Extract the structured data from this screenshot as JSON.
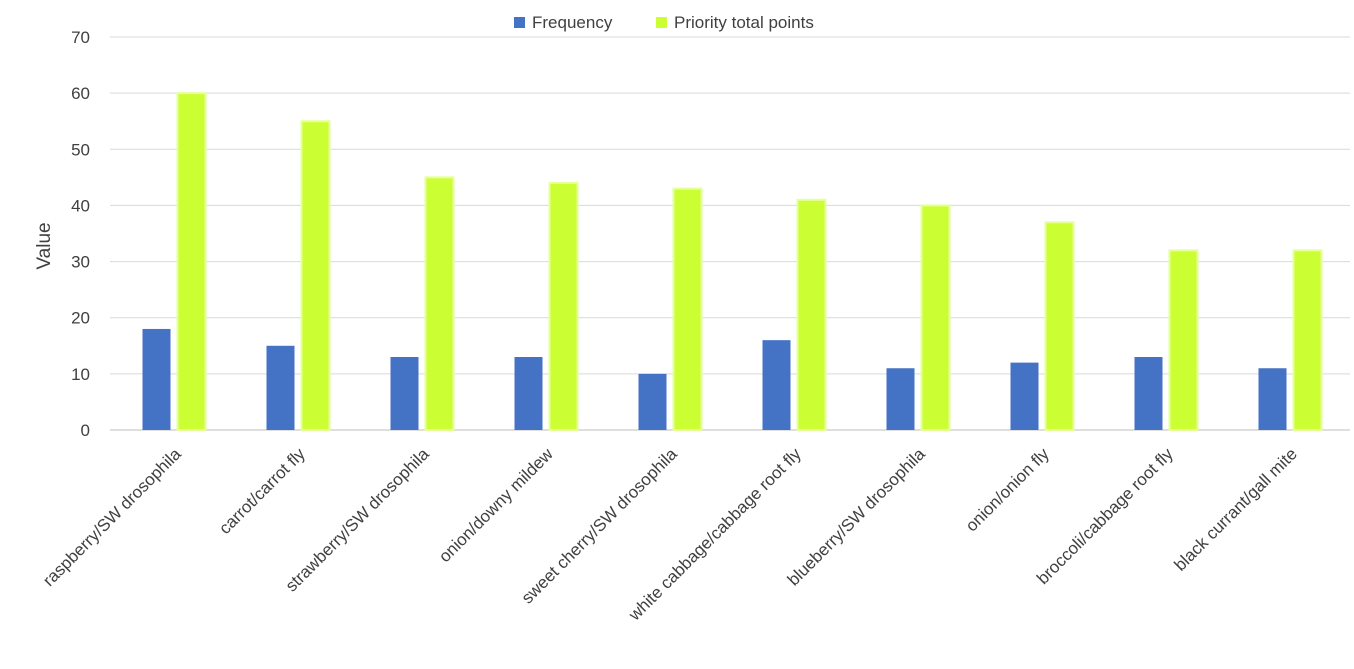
{
  "chart_data": {
    "type": "bar",
    "title": "",
    "xlabel": "",
    "ylabel": "Value",
    "ylim": [
      0,
      70
    ],
    "yticks": [
      0,
      10,
      20,
      30,
      40,
      50,
      60,
      70
    ],
    "grid": true,
    "legend_position": "top",
    "categories": [
      "raspberry/SW drosophila",
      "carrot/carrot fly",
      "strawberry/SW drosophila",
      "onion/downy mildew",
      "sweet cherry/SW drosophila",
      "white cabbage/cabbage root fly",
      "blueberry/SW drosophila",
      "onion/onion fly",
      "broccoli/cabbage root fly",
      "black currant/gall mite"
    ],
    "series": [
      {
        "name": "Frequency",
        "color": "#4472C4",
        "values": [
          18,
          15,
          13,
          13,
          10,
          16,
          11,
          12,
          13,
          11
        ]
      },
      {
        "name": "Priority total points",
        "color": "#CCFF33",
        "values": [
          60,
          55,
          45,
          44,
          43,
          41,
          40,
          37,
          32,
          32
        ]
      }
    ]
  }
}
